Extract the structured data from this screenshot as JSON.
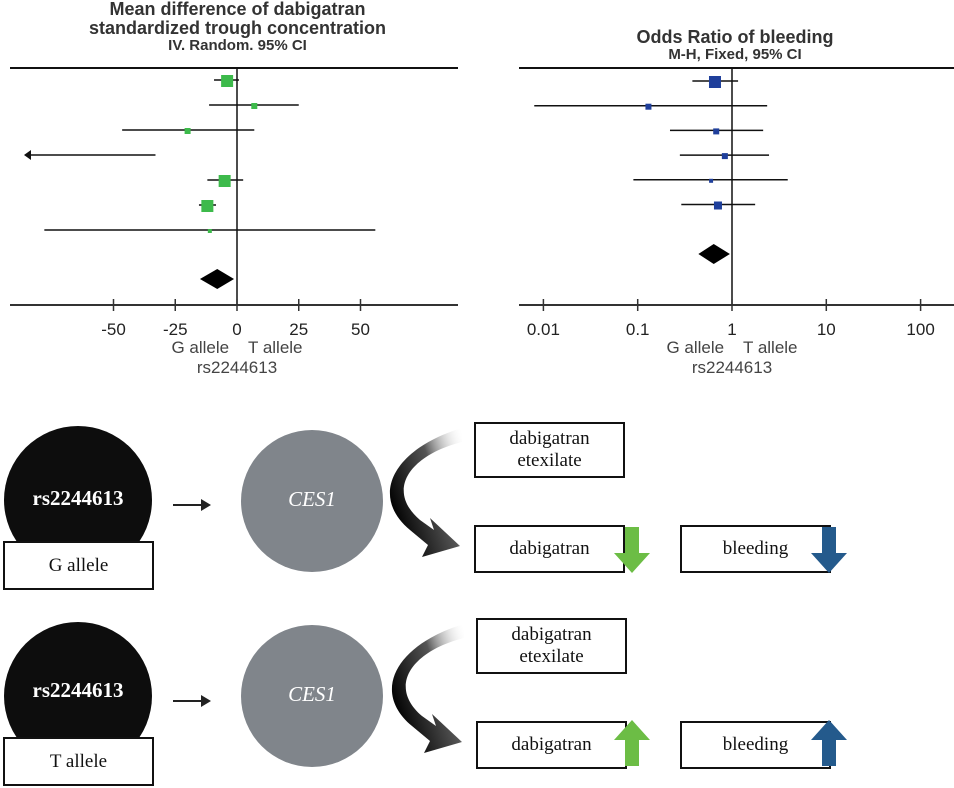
{
  "chart_data": [
    {
      "type": "forest",
      "title": [
        "Mean difference of dabigatran",
        "standardized trough concentration",
        "IV. Random. 95% CI"
      ],
      "scale": "linear",
      "xlim": [
        -90,
        90
      ],
      "ticks": [
        -50,
        -25,
        0,
        25,
        50
      ],
      "tick_labels": [
        "-50",
        "-25",
        "0",
        "25",
        "50"
      ],
      "reference_line": 0,
      "xlabel_left": "G allele",
      "xlabel_right": "T allele",
      "xlabel": "rs2244613",
      "marker_color": "#3dba4b",
      "studies": [
        {
          "estimate": -4,
          "ci_low": -9.3,
          "ci_high": 0.8,
          "weight": "large"
        },
        {
          "estimate": 7,
          "ci_low": -11.3,
          "ci_high": 25,
          "weight": "small"
        },
        {
          "estimate": -20,
          "ci_low": -46.5,
          "ci_high": 7,
          "weight": "small"
        },
        {
          "estimate": null,
          "ci_low": null,
          "ci_high": -33,
          "weight": "none",
          "offscale_left": true
        },
        {
          "estimate": -5,
          "ci_low": -12,
          "ci_high": 2.5,
          "weight": "large"
        },
        {
          "estimate": -12,
          "ci_low": -15.4,
          "ci_high": -8.5,
          "weight": "large"
        },
        {
          "estimate": -11,
          "ci_low": -78,
          "ci_high": 56,
          "weight": "tiny"
        }
      ],
      "pooled": {
        "estimate": -8,
        "ci_low": -15,
        "ci_high": -1.2
      }
    },
    {
      "type": "forest",
      "title": [
        "Odds Ratio of bleeding",
        "M-H, Fixed, 95% CI"
      ],
      "scale": "log",
      "xlim": [
        0.005,
        200
      ],
      "ticks": [
        0.01,
        0.1,
        1,
        10,
        100
      ],
      "tick_labels": [
        "0.01",
        "0.1",
        "1",
        "10",
        "100"
      ],
      "reference_line": 1,
      "xlabel_left": "G allele",
      "xlabel_right": "T allele",
      "xlabel": "rs2244613",
      "marker_color": "#1f3f9b",
      "studies": [
        {
          "estimate": 0.66,
          "ci_low": 0.38,
          "ci_high": 1.16,
          "weight": "large"
        },
        {
          "estimate": 0.13,
          "ci_low": 0.008,
          "ci_high": 2.36,
          "weight": "small"
        },
        {
          "estimate": 0.68,
          "ci_low": 0.22,
          "ci_high": 2.14,
          "weight": "small"
        },
        {
          "estimate": 0.84,
          "ci_low": 0.28,
          "ci_high": 2.47,
          "weight": "small"
        },
        {
          "estimate": 0.6,
          "ci_low": 0.09,
          "ci_high": 3.9,
          "weight": "tiny"
        },
        {
          "estimate": 0.71,
          "ci_low": 0.29,
          "ci_high": 1.76,
          "weight": "medium"
        }
      ],
      "pooled": {
        "estimate": 0.64,
        "ci_low": 0.44,
        "ci_high": 0.95
      }
    }
  ],
  "pathways": [
    {
      "snp": "rs2244613",
      "allele": "G allele",
      "gene": "CES1",
      "prodrug": "dabigatran etexilate",
      "metabolite": "dabigatran",
      "outcome": "bleeding",
      "metabolite_direction": "down",
      "outcome_direction": "down"
    },
    {
      "snp": "rs2244613",
      "allele": "T allele",
      "gene": "CES1",
      "prodrug": "dabigatran etexilate",
      "metabolite": "dabigatran",
      "outcome": "bleeding",
      "metabolite_direction": "up",
      "outcome_direction": "up"
    }
  ],
  "colors": {
    "green_arrow": "#6cbd45",
    "blue_arrow": "#245a8c",
    "snp_circle": "#0d0d0d",
    "gene_circle": "#80858b"
  }
}
